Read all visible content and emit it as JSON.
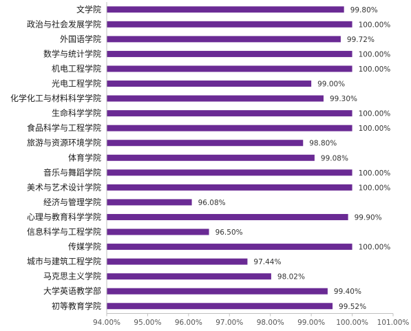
{
  "chart_data": {
    "type": "bar",
    "orientation": "horizontal",
    "categories": [
      "文学院",
      "政治与社会发展学院",
      "外国语学院",
      "数学与统计学院",
      "机电工程学院",
      "光电工程学院",
      "化学化工与材料科学学院",
      "生命科学学院",
      "食品科学与工程学院",
      "旅游与资源环境学院",
      "体育学院",
      "音乐与舞蹈学院",
      "美术与艺术设计学院",
      "经济与管理学院",
      "心理与教育科学学院",
      "信息科学与工程学院",
      "传媒学院",
      "城市与建筑工程学院",
      "马克思主义学院",
      "大学英语教学部",
      "初等教育学院"
    ],
    "values": [
      99.8,
      100.0,
      99.72,
      100.0,
      100.0,
      99.0,
      99.3,
      100.0,
      100.0,
      98.8,
      99.08,
      100.0,
      100.0,
      96.08,
      99.9,
      96.5,
      100.0,
      97.44,
      98.02,
      99.4,
      99.52
    ],
    "value_labels": [
      "99.80%",
      "100.00%",
      "99.72%",
      "100.00%",
      "100.00%",
      "99.00%",
      "99.30%",
      "100.00%",
      "100.00%",
      "98.80%",
      "99.08%",
      "100.00%",
      "100.00%",
      "96.08%",
      "99.90%",
      "96.50%",
      "100.00%",
      "97.44%",
      "98.02%",
      "99.40%",
      "99.52%"
    ],
    "xlim": [
      94,
      101
    ],
    "xticks": [
      94,
      95,
      96,
      97,
      98,
      99,
      100,
      101
    ],
    "xtick_labels": [
      "94.00%",
      "95.00%",
      "96.00%",
      "97.00%",
      "98.00%",
      "99.00%",
      "100.00%",
      "101.00%"
    ],
    "title": "",
    "xlabel": "",
    "ylabel": "",
    "grid": false,
    "legend": "none",
    "bar_color": "#6a2a94",
    "axis_color": "#c0c0c0"
  }
}
